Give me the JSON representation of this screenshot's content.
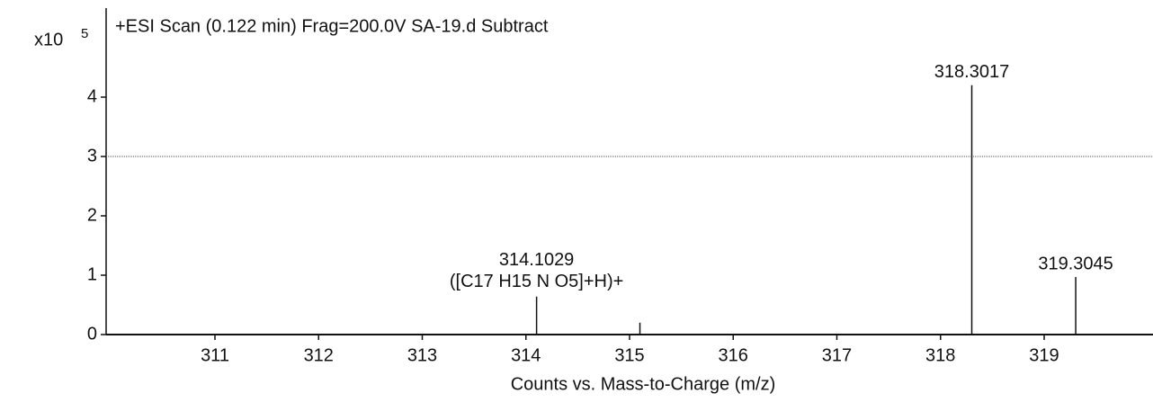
{
  "chart_data": {
    "type": "stem",
    "title": "+ESI Scan (0.122 min) Frag=200.0V SA-19.d  Subtract",
    "y_multiplier": {
      "base": "x10",
      "exponent": "5"
    },
    "x_label": "Counts vs. Mass-to-Charge (m/z)",
    "x": [
      314.1029,
      315.1,
      318.3017,
      319.3045
    ],
    "x_labels": [
      "314.1029",
      null,
      "318.3017",
      "319.3045"
    ],
    "peak_formulas": [
      "([C17 H15 N O5]+H)+",
      null,
      null,
      null
    ],
    "values": [
      0.64,
      0.2,
      4.2,
      0.97
    ],
    "color": "#111111",
    "xlim": [
      309.95,
      320.05
    ],
    "xticks": [
      311,
      312,
      313,
      314,
      315,
      316,
      317,
      318,
      319
    ],
    "ylim": [
      0,
      5.5
    ],
    "yticks": [
      0,
      1,
      2,
      3,
      4
    ],
    "reference_line": 3
  }
}
